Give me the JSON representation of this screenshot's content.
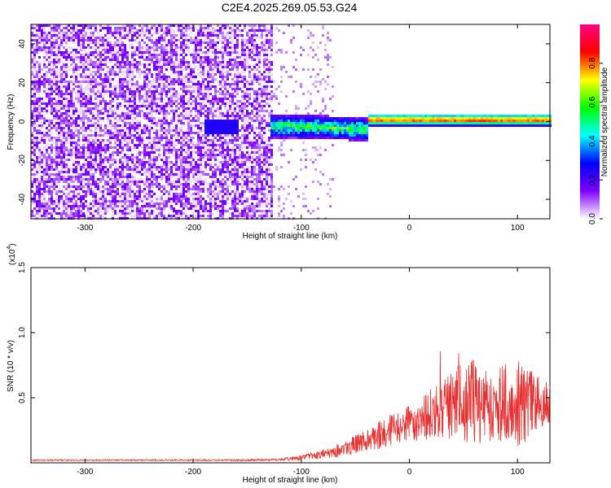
{
  "title": "C2E4.2025.269.05.53.G24",
  "chart_data": [
    {
      "type": "heatmap",
      "xlabel": "Height of straight line (km)",
      "ylabel": "Frequency (Hz)",
      "xlim": [
        -350,
        130
      ],
      "ylim": [
        -50,
        50
      ],
      "x_ticks": [
        -300,
        -200,
        -100,
        0,
        100
      ],
      "y_ticks": [
        -40,
        -20,
        0,
        20,
        40
      ],
      "grid": false,
      "colorbar": {
        "label": "Normalized spectral amplitude",
        "range": [
          0.0,
          1.0
        ],
        "ticks": [
          0.0,
          0.2,
          0.4,
          0.6,
          0.8
        ],
        "colormap": [
          "#ffffff",
          "#7f00ff",
          "#0000ff",
          "#00ffff",
          "#00ff00",
          "#ffff00",
          "#ff0000",
          "#ff0080"
        ]
      },
      "description_regions": [
        {
          "x_range": [
            -350,
            -128
          ],
          "freq_range": [
            -50,
            50
          ],
          "amplitude": "noise 0.1-0.2"
        },
        {
          "x_range": [
            -128,
            130
          ],
          "freq_center": 1,
          "amplitude_peak": 0.9
        }
      ]
    },
    {
      "type": "line",
      "xlabel": "Height of straight line (km)",
      "ylabel": "SNR (10 * v/v)",
      "y_multiplier": "(x10",
      "y_multiplier_exp": "4",
      "xlim": [
        -350,
        130
      ],
      "ylim": [
        0,
        1.5
      ],
      "x_ticks": [
        -300,
        -200,
        -100,
        0,
        100
      ],
      "y_ticks": [
        0.5,
        1.0,
        1.5
      ],
      "y_tick_labels": [
        "0.5",
        "1.0",
        "1.5"
      ],
      "grid": false,
      "series": [
        {
          "color": "#e83030",
          "envelope": {
            "x": [
              -350,
              -300,
              -200,
              -150,
              -120,
              -100,
              -80,
              -60,
              -40,
              -20,
              0,
              20,
              40,
              60,
              80,
              100,
              120,
              130
            ],
            "mean": [
              0.02,
              0.02,
              0.02,
              0.02,
              0.025,
              0.04,
              0.07,
              0.11,
              0.17,
              0.24,
              0.3,
              0.38,
              0.45,
              0.47,
              0.46,
              0.45,
              0.46,
              0.46
            ],
            "spread": [
              0.005,
              0.005,
              0.005,
              0.006,
              0.01,
              0.02,
              0.04,
              0.06,
              0.09,
              0.12,
              0.14,
              0.2,
              0.28,
              0.33,
              0.33,
              0.35,
              0.2,
              0.15
            ]
          }
        }
      ]
    }
  ]
}
